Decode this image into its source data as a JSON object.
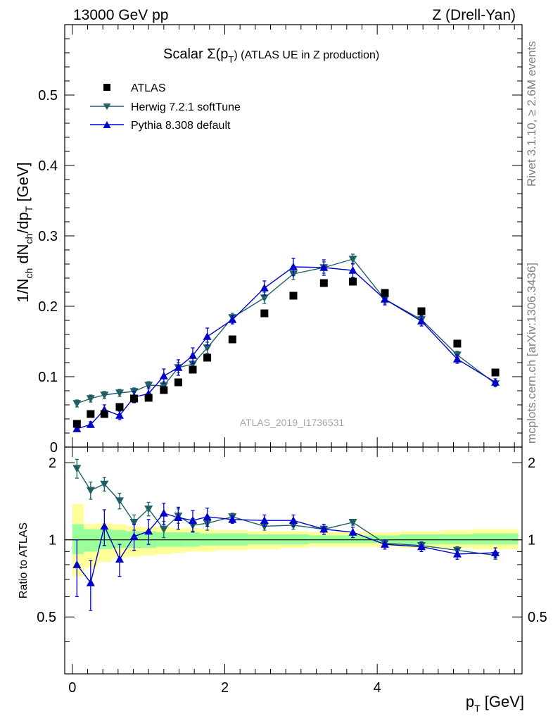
{
  "header": {
    "left": "13000 GeV pp",
    "right": "Z (Drell-Yan)"
  },
  "side_labels": {
    "rivet": "Rivet 3.1.10, ≥ 2.6M events",
    "mcplots": "mcplots.cern.ch [arXiv:1306.3436]"
  },
  "chart_data": {
    "type": "scatter",
    "title_main": "Scalar Σ(p",
    "title_sub": "T",
    "title_tail": ") (ATLAS UE in Z production)",
    "analysis_id": "ATLAS_2019_I1736531",
    "xlabel": "p",
    "xlabel_sub": "T",
    "xlabel_unit": " [GeV]",
    "ylabel": "1/N_ch dN_ch/dp_T [GeV]",
    "ratio_ylabel": "Ratio to ATLAS",
    "xlim": [
      -0.1,
      5.9
    ],
    "ylim": [
      0,
      0.6
    ],
    "ratio_ylim": [
      0.3,
      2.3
    ],
    "x_ticks": [
      "0",
      "2",
      "4"
    ],
    "y_ticks": [
      "0",
      "0.1",
      "0.2",
      "0.3",
      "0.4",
      "0.5"
    ],
    "ratio_ticks": [
      "0.5",
      "1",
      "2"
    ],
    "x": [
      0.06,
      0.24,
      0.42,
      0.62,
      0.81,
      1.0,
      1.2,
      1.39,
      1.58,
      1.77,
      2.1,
      2.52,
      2.9,
      3.3,
      3.68,
      4.1,
      4.58,
      5.05,
      5.55
    ],
    "bin_edges": [
      0.0,
      0.15,
      0.33,
      0.52,
      0.71,
      0.9,
      1.1,
      1.3,
      1.48,
      1.67,
      1.87,
      2.3,
      2.72,
      3.1,
      3.5,
      3.9,
      4.3,
      4.85,
      5.25,
      5.85
    ],
    "series": [
      {
        "name": "ATLAS",
        "color": "#000000",
        "marker": "square",
        "values": [
          0.033,
          0.047,
          0.047,
          0.057,
          0.069,
          0.07,
          0.081,
          0.092,
          0.11,
          0.127,
          0.153,
          0.19,
          0.215,
          0.233,
          0.235,
          0.219,
          0.193,
          0.147,
          0.106
        ]
      },
      {
        "name": "Herwig 7.2.1 softTune",
        "color": "#1f5f66",
        "marker": "triangle-down",
        "values": [
          0.062,
          0.069,
          0.074,
          0.077,
          0.079,
          0.088,
          0.087,
          0.113,
          0.118,
          0.141,
          0.184,
          0.212,
          0.246,
          0.255,
          0.267,
          0.21,
          0.181,
          0.131,
          0.09
        ],
        "errors": [
          0.005,
          0.005,
          0.005,
          0.005,
          0.005,
          0.005,
          0.006,
          0.007,
          0.008,
          0.008,
          0.006,
          0.008,
          0.008,
          0.008,
          0.007,
          0.006,
          0.006,
          0.005,
          0.004
        ],
        "ratio": [
          1.9,
          1.56,
          1.65,
          1.42,
          1.17,
          1.32,
          1.1,
          1.24,
          1.14,
          1.16,
          1.23,
          1.13,
          1.14,
          1.1,
          1.17,
          0.97,
          0.95,
          0.91,
          0.87
        ],
        "ratio_errors": [
          0.16,
          0.12,
          0.1,
          0.1,
          0.08,
          0.08,
          0.08,
          0.08,
          0.07,
          0.07,
          0.04,
          0.04,
          0.04,
          0.03,
          0.03,
          0.03,
          0.03,
          0.03,
          0.03
        ]
      },
      {
        "name": "Pythia 8.308 default",
        "color": "#0000cc",
        "marker": "triangle-up",
        "values": [
          0.026,
          0.032,
          0.053,
          0.045,
          0.071,
          0.076,
          0.101,
          0.113,
          0.13,
          0.157,
          0.181,
          0.226,
          0.256,
          0.255,
          0.251,
          0.21,
          0.179,
          0.125,
          0.092
        ],
        "errors": [
          0.004,
          0.004,
          0.007,
          0.006,
          0.008,
          0.009,
          0.01,
          0.011,
          0.011,
          0.012,
          0.006,
          0.01,
          0.012,
          0.011,
          0.01,
          0.008,
          0.007,
          0.006,
          0.005
        ],
        "ratio": [
          0.8,
          0.68,
          1.13,
          0.84,
          1.03,
          1.08,
          1.27,
          1.22,
          1.19,
          1.23,
          1.2,
          1.19,
          1.19,
          1.1,
          1.07,
          0.96,
          0.94,
          0.88,
          0.89
        ],
        "ratio_errors": [
          0.2,
          0.15,
          0.18,
          0.12,
          0.12,
          0.12,
          0.12,
          0.12,
          0.11,
          0.1,
          0.04,
          0.06,
          0.06,
          0.05,
          0.05,
          0.04,
          0.04,
          0.04,
          0.04
        ]
      }
    ],
    "ratio_band": {
      "yellow": [
        [
          0.72,
          1.38
        ],
        [
          0.78,
          1.15
        ],
        [
          0.82,
          1.16
        ],
        [
          0.85,
          1.15
        ],
        [
          0.86,
          1.13
        ],
        [
          0.87,
          1.12
        ],
        [
          0.88,
          1.12
        ],
        [
          0.89,
          1.11
        ],
        [
          0.9,
          1.11
        ],
        [
          0.9,
          1.1
        ],
        [
          0.91,
          1.09
        ],
        [
          0.92,
          1.08
        ],
        [
          0.93,
          1.08
        ],
        [
          0.94,
          1.07
        ],
        [
          0.94,
          1.07
        ],
        [
          0.94,
          1.07
        ],
        [
          0.93,
          1.08
        ],
        [
          0.93,
          1.09
        ],
        [
          0.92,
          1.1
        ]
      ],
      "green": [
        [
          0.88,
          1.15
        ],
        [
          0.9,
          1.1
        ],
        [
          0.92,
          1.1
        ],
        [
          0.93,
          1.09
        ],
        [
          0.93,
          1.08
        ],
        [
          0.93,
          1.08
        ],
        [
          0.94,
          1.07
        ],
        [
          0.94,
          1.07
        ],
        [
          0.94,
          1.07
        ],
        [
          0.95,
          1.06
        ],
        [
          0.95,
          1.06
        ],
        [
          0.96,
          1.05
        ],
        [
          0.96,
          1.05
        ],
        [
          0.97,
          1.04
        ],
        [
          0.97,
          1.04
        ],
        [
          0.97,
          1.04
        ],
        [
          0.96,
          1.05
        ],
        [
          0.96,
          1.05
        ],
        [
          0.96,
          1.06
        ]
      ]
    },
    "colors": {
      "band_yellow": "#ffff99",
      "band_green": "#99ff99"
    }
  }
}
